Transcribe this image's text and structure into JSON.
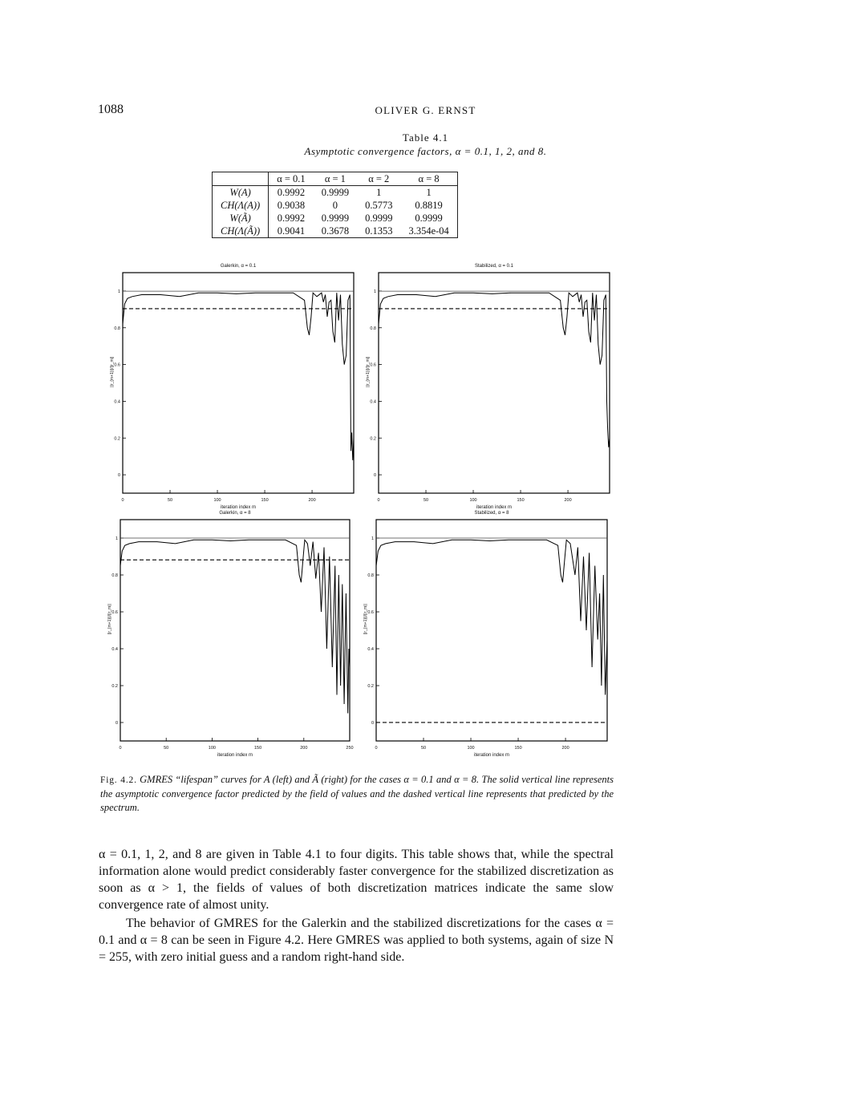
{
  "header": {
    "page_number": "1088",
    "running_head": "OLIVER G. ERNST"
  },
  "table": {
    "label": "Table 4.1",
    "caption": "Asymptotic convergence factors, α = 0.1, 1, 2, and 8.",
    "columns": [
      "",
      "α = 0.1",
      "α = 1",
      "α = 2",
      "α = 8"
    ],
    "rows": [
      {
        "label": "W(A)",
        "cells": [
          "0.9992",
          "0.9999",
          "1",
          "1"
        ]
      },
      {
        "label": "CH(Λ(A))",
        "cells": [
          "0.9038",
          "0",
          "0.5773",
          "0.8819"
        ]
      },
      {
        "label": "W(Ã)",
        "cells": [
          "0.9992",
          "0.9999",
          "0.9999",
          "0.9999"
        ]
      },
      {
        "label": "CH(Λ(Ã))",
        "cells": [
          "0.9041",
          "0.3678",
          "0.1353",
          "3.354e-04"
        ]
      }
    ]
  },
  "chart_data": [
    {
      "type": "line",
      "title": "Galerkin, α = 0.1",
      "xlabel": "iteration index m",
      "ylabel": "||r_{m+1}||/||r_m||",
      "xlim": [
        0,
        244
      ],
      "ylim": [
        -0.1,
        1.1
      ],
      "xticks": [
        0,
        50,
        100,
        150,
        200
      ],
      "yticks": [
        0,
        0.2,
        0.4,
        0.6,
        0.8,
        1
      ],
      "field_of_values_line": 0.9992,
      "spectrum_line": 0.9038,
      "series": [
        {
          "x": [
            0,
            2,
            5,
            10,
            20,
            40,
            60,
            80,
            100,
            120,
            140,
            160,
            180,
            192,
            195,
            197,
            199,
            201,
            205,
            210,
            212,
            214,
            216,
            218,
            220,
            222,
            224,
            226,
            228,
            230,
            232,
            234,
            236,
            238,
            240,
            241,
            242,
            243,
            244
          ],
          "values": [
            0.82,
            0.93,
            0.96,
            0.97,
            0.98,
            0.98,
            0.97,
            0.99,
            0.99,
            0.985,
            0.99,
            0.99,
            0.99,
            0.95,
            0.8,
            0.76,
            0.86,
            0.99,
            0.97,
            0.99,
            0.94,
            0.98,
            0.86,
            0.94,
            0.95,
            0.78,
            0.72,
            0.99,
            0.84,
            0.98,
            0.71,
            0.6,
            0.65,
            0.95,
            0.98,
            0.13,
            0.23,
            0.08,
            0.2
          ]
        }
      ]
    },
    {
      "type": "line",
      "title": "Stabilized, α = 0.1",
      "xlabel": "iteration index m",
      "ylabel": "||r_{m+1}||/||r_m||",
      "xlim": [
        0,
        244
      ],
      "ylim": [
        -0.1,
        1.1
      ],
      "xticks": [
        0,
        50,
        100,
        150,
        200
      ],
      "yticks": [
        0,
        0.2,
        0.4,
        0.6,
        0.8,
        1
      ],
      "field_of_values_line": 0.9992,
      "spectrum_line": 0.9041,
      "series": [
        {
          "x": [
            0,
            2,
            5,
            10,
            20,
            40,
            60,
            80,
            100,
            120,
            140,
            160,
            180,
            192,
            195,
            197,
            199,
            201,
            205,
            210,
            212,
            214,
            216,
            218,
            220,
            222,
            224,
            226,
            228,
            230,
            232,
            234,
            236,
            238,
            240,
            241,
            242,
            243,
            244
          ],
          "values": [
            0.82,
            0.93,
            0.96,
            0.97,
            0.98,
            0.98,
            0.97,
            0.99,
            0.99,
            0.985,
            0.99,
            0.99,
            0.99,
            0.95,
            0.8,
            0.76,
            0.86,
            0.99,
            0.97,
            0.99,
            0.94,
            0.98,
            0.86,
            0.94,
            0.95,
            0.78,
            0.72,
            0.99,
            0.84,
            0.98,
            0.71,
            0.6,
            0.65,
            0.95,
            0.98,
            0.4,
            0.25,
            0.15,
            0.2
          ]
        }
      ]
    },
    {
      "type": "line",
      "title": "Galerkin, α = 8",
      "xlabel": "iteration index m",
      "ylabel": "||r_{m+1}||/||r_m||",
      "xlim": [
        0,
        250
      ],
      "ylim": [
        -0.1,
        1.1
      ],
      "xticks": [
        0,
        50,
        100,
        150,
        200,
        250
      ],
      "yticks": [
        0,
        0.2,
        0.4,
        0.6,
        0.8,
        1
      ],
      "field_of_values_line": 1,
      "spectrum_line": 0.8819,
      "series": [
        {
          "x": [
            0,
            2,
            5,
            10,
            20,
            40,
            60,
            80,
            100,
            120,
            140,
            160,
            180,
            192,
            195,
            197,
            199,
            201,
            204,
            207,
            210,
            213,
            216,
            219,
            222,
            225,
            228,
            231,
            234,
            236,
            238,
            240,
            242,
            244,
            246,
            248,
            249,
            250
          ],
          "values": [
            0.85,
            0.93,
            0.96,
            0.97,
            0.98,
            0.98,
            0.97,
            0.99,
            0.99,
            0.985,
            0.99,
            0.99,
            0.99,
            0.96,
            0.8,
            0.76,
            0.88,
            0.99,
            0.97,
            0.85,
            0.98,
            0.78,
            0.92,
            0.6,
            0.95,
            0.4,
            0.9,
            0.3,
            0.85,
            0.15,
            0.8,
            0.2,
            0.75,
            0.1,
            0.7,
            0.05,
            0.4,
            0.3
          ]
        }
      ]
    },
    {
      "type": "line",
      "title": "Stabilized, α = 8",
      "xlabel": "iteration index m",
      "ylabel": "||r_{m+1}||/||r_m||",
      "xlim": [
        0,
        244
      ],
      "ylim": [
        -0.1,
        1.1
      ],
      "xticks": [
        0,
        50,
        100,
        150,
        200
      ],
      "yticks": [
        0,
        0.2,
        0.4,
        0.6,
        0.8,
        1
      ],
      "field_of_values_line": 0.9999,
      "spectrum_line": 0.0003354,
      "series": [
        {
          "x": [
            0,
            2,
            5,
            10,
            20,
            40,
            60,
            80,
            100,
            120,
            140,
            160,
            180,
            192,
            195,
            197,
            199,
            201,
            205,
            210,
            213,
            216,
            219,
            222,
            225,
            228,
            231,
            234,
            236,
            238,
            240,
            242,
            244
          ],
          "values": [
            0.85,
            0.93,
            0.96,
            0.97,
            0.98,
            0.98,
            0.97,
            0.99,
            0.99,
            0.985,
            0.99,
            0.99,
            0.99,
            0.96,
            0.8,
            0.76,
            0.88,
            0.99,
            0.97,
            0.8,
            0.95,
            0.55,
            0.9,
            0.5,
            0.92,
            0.3,
            0.85,
            0.45,
            0.7,
            0.2,
            0.8,
            0.15,
            0.45
          ]
        }
      ]
    }
  ],
  "figure": {
    "label": "Fig. 4.2.",
    "caption": "GMRES “lifespan” curves for A (left) and Ã (right) for the cases α = 0.1 and α = 8. The solid vertical line represents the asymptotic convergence factor predicted by the field of values and the dashed vertical line represents that predicted by the spectrum."
  },
  "body": {
    "p1": "α = 0.1, 1, 2, and 8 are given in Table 4.1 to four digits. This table shows that, while the spectral information alone would predict considerably faster convergence for the stabilized discretization as soon as α > 1, the fields of values of both discretization matrices indicate the same slow convergence rate of almost unity.",
    "p2": "The behavior of GMRES for the Galerkin and the stabilized discretizations for the cases α = 0.1 and α = 8 can be seen in Figure 4.2. Here GMRES was applied to both systems, again of size N = 255, with zero initial guess and a random right-hand side."
  }
}
